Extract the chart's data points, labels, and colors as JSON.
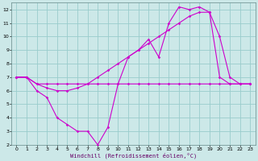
{
  "xlabel": "Windchill (Refroidissement éolien,°C)",
  "bg_color": "#cce8e8",
  "line_color": "#cc00cc",
  "grid_color": "#99cccc",
  "xlim": [
    -0.5,
    23.5
  ],
  "ylim": [
    2,
    12.5
  ],
  "xticks": [
    0,
    1,
    2,
    3,
    4,
    5,
    6,
    7,
    8,
    9,
    10,
    11,
    12,
    13,
    14,
    15,
    16,
    17,
    18,
    19,
    20,
    21,
    22,
    23
  ],
  "yticks": [
    2,
    3,
    4,
    5,
    6,
    7,
    8,
    9,
    10,
    11,
    12
  ],
  "line1_x": [
    0,
    1,
    2,
    3,
    4,
    5,
    6,
    7,
    8,
    9,
    10,
    11,
    12,
    13,
    14,
    15,
    16,
    17,
    18,
    19,
    20,
    21,
    22,
    23
  ],
  "line1_y": [
    7,
    7,
    6,
    5.5,
    4,
    3.5,
    3,
    3,
    2,
    3.3,
    6.5,
    8.5,
    9,
    9.8,
    8.5,
    11,
    12.2,
    12,
    12.2,
    11.8,
    7,
    6.5,
    6.5,
    6.5
  ],
  "line2_x": [
    0,
    1,
    2,
    3,
    4,
    5,
    6,
    7,
    8,
    9,
    10,
    11,
    12,
    13,
    14,
    15,
    16,
    17,
    18,
    19,
    20,
    21,
    22,
    23
  ],
  "line2_y": [
    7,
    7,
    6.5,
    6.5,
    6.5,
    6.5,
    6.5,
    6.5,
    6.5,
    6.5,
    6.5,
    6.5,
    6.5,
    6.5,
    6.5,
    6.5,
    6.5,
    6.5,
    6.5,
    6.5,
    6.5,
    6.5,
    6.5,
    6.5
  ],
  "line3_x": [
    0,
    1,
    2,
    3,
    4,
    5,
    6,
    7,
    8,
    9,
    10,
    11,
    12,
    13,
    14,
    15,
    16,
    17,
    18,
    19,
    20,
    21,
    22,
    23
  ],
  "line3_y": [
    7,
    7,
    6.5,
    6.2,
    6.0,
    6.0,
    6.2,
    6.5,
    7.0,
    7.5,
    8.0,
    8.5,
    9.0,
    9.5,
    10.0,
    10.5,
    11.0,
    11.5,
    11.8,
    11.8,
    10.0,
    7.0,
    6.5,
    6.5
  ]
}
